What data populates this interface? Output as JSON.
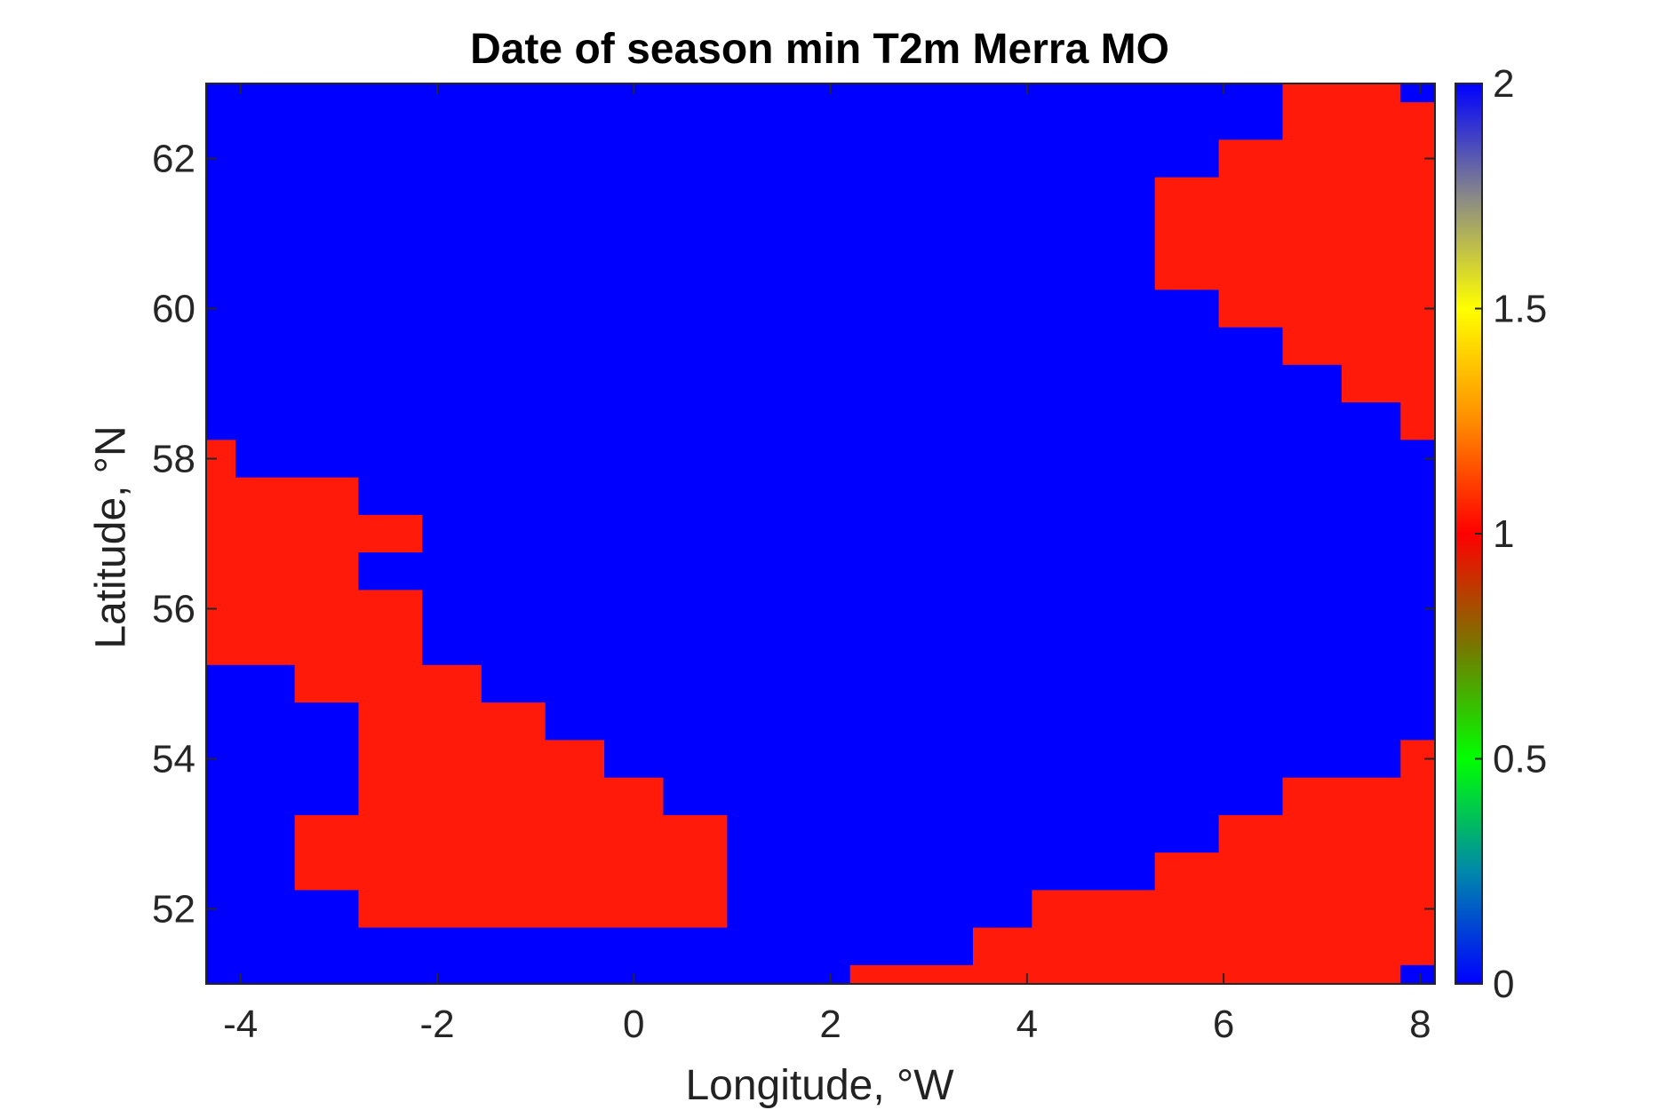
{
  "chart_data": {
    "type": "heatmap",
    "title": "Date of season min T2m Merra MO",
    "xlabel": "Longitude, °W",
    "ylabel": "Latitude, °N",
    "xlim": [
      -4.35,
      8.15
    ],
    "ylim": [
      51.0,
      63.0
    ],
    "xticks": [
      -4,
      -2,
      0,
      2,
      4,
      6,
      8
    ],
    "yticks": [
      52,
      54,
      56,
      58,
      60,
      62
    ],
    "background_value": 0,
    "background_color": "#0000ff",
    "region_value": 1,
    "region_color": "#ff1a0a",
    "colorbar": {
      "min": 0,
      "max": 2,
      "ticks": [
        0,
        0.5,
        1,
        1.5,
        2
      ],
      "tick_labels": [
        "0",
        "0.5",
        "1",
        "1.5",
        "2"
      ],
      "stops": [
        "#0000ff",
        "#0088aa",
        "#00ff00",
        "#777700",
        "#ff0000",
        "#ff8c00",
        "#ffff00",
        "#888888",
        "#0000ff"
      ]
    },
    "regions": [
      {
        "name": "great-britain",
        "value": 1,
        "polygon": [
          [
            -4.35,
            58.25
          ],
          [
            -4.05,
            58.25
          ],
          [
            -4.05,
            57.75
          ],
          [
            -2.8,
            57.75
          ],
          [
            -2.8,
            57.25
          ],
          [
            -2.15,
            57.25
          ],
          [
            -2.15,
            56.75
          ],
          [
            -2.8,
            56.75
          ],
          [
            -2.8,
            56.25
          ],
          [
            -2.15,
            56.25
          ],
          [
            -2.15,
            55.25
          ],
          [
            -1.55,
            55.25
          ],
          [
            -1.55,
            54.75
          ],
          [
            -0.9,
            54.75
          ],
          [
            -0.9,
            54.25
          ],
          [
            -0.3,
            54.25
          ],
          [
            -0.3,
            53.75
          ],
          [
            0.3,
            53.75
          ],
          [
            0.3,
            53.25
          ],
          [
            0.95,
            53.25
          ],
          [
            0.95,
            51.75
          ],
          [
            -2.8,
            51.75
          ],
          [
            -2.8,
            52.25
          ],
          [
            -3.45,
            52.25
          ],
          [
            -3.45,
            53.25
          ],
          [
            -2.8,
            53.25
          ],
          [
            -2.8,
            54.75
          ],
          [
            -3.45,
            54.75
          ],
          [
            -3.45,
            55.25
          ],
          [
            -4.35,
            55.25
          ]
        ]
      },
      {
        "name": "norway",
        "value": 1,
        "polygon": [
          [
            6.6,
            63.0
          ],
          [
            7.8,
            63.0
          ],
          [
            7.8,
            62.75
          ],
          [
            8.15,
            62.75
          ],
          [
            8.15,
            58.25
          ],
          [
            7.8,
            58.25
          ],
          [
            7.8,
            58.75
          ],
          [
            7.2,
            58.75
          ],
          [
            7.2,
            59.25
          ],
          [
            6.6,
            59.25
          ],
          [
            6.6,
            59.75
          ],
          [
            5.95,
            59.75
          ],
          [
            5.95,
            60.25
          ],
          [
            5.3,
            60.25
          ],
          [
            5.3,
            61.75
          ],
          [
            5.95,
            61.75
          ],
          [
            5.95,
            62.25
          ],
          [
            6.6,
            62.25
          ]
        ]
      },
      {
        "name": "continent",
        "value": 1,
        "polygon": [
          [
            2.2,
            51.0
          ],
          [
            7.8,
            51.0
          ],
          [
            7.8,
            51.25
          ],
          [
            8.15,
            51.25
          ],
          [
            8.15,
            54.25
          ],
          [
            7.8,
            54.25
          ],
          [
            7.8,
            53.75
          ],
          [
            6.6,
            53.75
          ],
          [
            6.6,
            53.25
          ],
          [
            5.95,
            53.25
          ],
          [
            5.95,
            52.75
          ],
          [
            5.3,
            52.75
          ],
          [
            5.3,
            52.25
          ],
          [
            4.05,
            52.25
          ],
          [
            4.05,
            51.75
          ],
          [
            3.45,
            51.75
          ],
          [
            3.45,
            51.25
          ],
          [
            2.2,
            51.25
          ]
        ]
      }
    ]
  }
}
